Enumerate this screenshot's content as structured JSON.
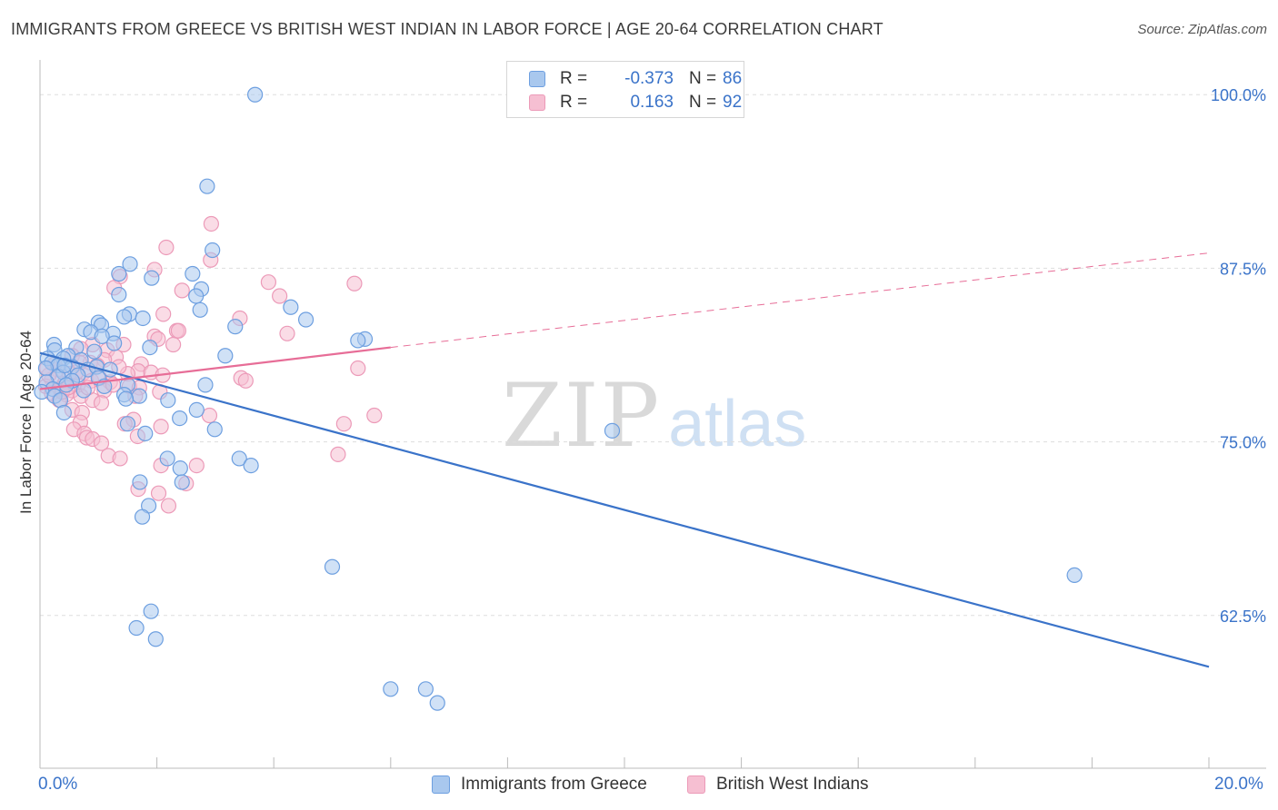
{
  "title": "IMMIGRANTS FROM GREECE VS BRITISH WEST INDIAN IN LABOR FORCE | AGE 20-64 CORRELATION CHART",
  "source": "Source: ZipAtlas.com",
  "watermark": {
    "zip": "ZIP",
    "atlas": "atlas"
  },
  "colors": {
    "blue": "#3a73c9",
    "blue_fill": "#a9c8ee",
    "blue_stroke": "#6d9fe0",
    "pink": "#e76d97",
    "pink_fill": "#f6bfd2",
    "pink_stroke": "#ec9ab8",
    "grid": "#dddddd",
    "axis_text": "#3a73c9"
  },
  "legend_top": {
    "rows": [
      {
        "r_label": "R =",
        "r_value": "-0.373",
        "n_label": "N =",
        "n_value": "86"
      },
      {
        "r_label": "R =",
        "r_value": "0.163",
        "n_label": "N =",
        "n_value": "92"
      }
    ]
  },
  "legend_bottom": [
    "Immigrants from Greece",
    "British West Indians"
  ],
  "chart_data": {
    "type": "scatter",
    "title": "IMMIGRANTS FROM GREECE VS BRITISH WEST INDIAN IN LABOR FORCE | AGE 20-64 CORRELATION CHART",
    "xlabel": "",
    "ylabel": "In Labor Force | Age 20-64",
    "xlim": [
      0,
      20
    ],
    "ylim": [
      51.5,
      102.5
    ],
    "x_tick_labels": [
      "0.0%",
      "20.0%"
    ],
    "y_ticks": [
      62.5,
      75.0,
      87.5,
      100.0
    ],
    "y_tick_labels": [
      "62.5%",
      "75.0%",
      "87.5%",
      "100.0%"
    ],
    "grid": true,
    "series": [
      {
        "name": "Immigrants from Greece",
        "color": "#3a73c9",
        "trendline": {
          "x": [
            0.0,
            20.0
          ],
          "y": [
            81.4,
            58.8
          ],
          "style": "solid"
        },
        "points": [
          [
            3.68,
            100.0
          ],
          [
            2.86,
            93.4
          ],
          [
            2.95,
            88.8
          ],
          [
            1.54,
            87.8
          ],
          [
            2.61,
            87.1
          ],
          [
            1.35,
            87.1
          ],
          [
            1.91,
            86.8
          ],
          [
            2.76,
            86.0
          ],
          [
            2.67,
            85.5
          ],
          [
            1.35,
            85.6
          ],
          [
            4.29,
            84.7
          ],
          [
            2.74,
            84.5
          ],
          [
            1.53,
            84.2
          ],
          [
            1.76,
            83.9
          ],
          [
            1.44,
            84.0
          ],
          [
            1.0,
            83.6
          ],
          [
            4.55,
            83.8
          ],
          [
            3.34,
            83.3
          ],
          [
            1.05,
            83.4
          ],
          [
            0.76,
            83.1
          ],
          [
            0.87,
            82.9
          ],
          [
            1.25,
            82.8
          ],
          [
            1.06,
            82.6
          ],
          [
            0.24,
            82.0
          ],
          [
            5.56,
            82.4
          ],
          [
            5.44,
            82.3
          ],
          [
            1.27,
            82.1
          ],
          [
            0.62,
            81.8
          ],
          [
            1.88,
            81.8
          ],
          [
            0.25,
            81.6
          ],
          [
            3.17,
            81.2
          ],
          [
            0.48,
            81.2
          ],
          [
            0.13,
            81.0
          ],
          [
            0.4,
            81.0
          ],
          [
            0.7,
            80.9
          ],
          [
            0.2,
            80.7
          ],
          [
            0.31,
            80.5
          ],
          [
            0.55,
            80.4
          ],
          [
            0.82,
            80.2
          ],
          [
            0.97,
            80.4
          ],
          [
            1.2,
            80.2
          ],
          [
            0.1,
            80.3
          ],
          [
            0.4,
            80.0
          ],
          [
            0.65,
            79.8
          ],
          [
            0.31,
            79.7
          ],
          [
            1.0,
            79.6
          ],
          [
            0.55,
            79.4
          ],
          [
            1.5,
            79.1
          ],
          [
            2.83,
            79.1
          ],
          [
            0.11,
            79.3
          ],
          [
            0.45,
            79.1
          ],
          [
            1.1,
            79.0
          ],
          [
            0.22,
            78.8
          ],
          [
            0.75,
            78.7
          ],
          [
            0.03,
            78.6
          ],
          [
            1.44,
            78.4
          ],
          [
            0.25,
            78.3
          ],
          [
            1.7,
            78.3
          ],
          [
            0.35,
            78.0
          ],
          [
            1.47,
            78.1
          ],
          [
            2.19,
            78.0
          ],
          [
            2.68,
            77.3
          ],
          [
            0.41,
            77.1
          ],
          [
            2.39,
            76.7
          ],
          [
            1.5,
            76.3
          ],
          [
            2.99,
            75.9
          ],
          [
            1.8,
            75.6
          ],
          [
            9.79,
            75.8
          ],
          [
            2.18,
            73.8
          ],
          [
            3.41,
            73.8
          ],
          [
            3.61,
            73.3
          ],
          [
            2.4,
            73.1
          ],
          [
            1.71,
            72.1
          ],
          [
            2.43,
            72.1
          ],
          [
            1.86,
            70.4
          ],
          [
            1.75,
            69.6
          ],
          [
            5.0,
            66.0
          ],
          [
            17.7,
            65.4
          ],
          [
            1.9,
            62.8
          ],
          [
            1.65,
            61.6
          ],
          [
            1.98,
            60.8
          ],
          [
            6.0,
            57.2
          ],
          [
            6.6,
            57.2
          ],
          [
            6.8,
            56.2
          ],
          [
            0.42,
            80.5
          ],
          [
            0.93,
            81.5
          ]
        ]
      },
      {
        "name": "British West Indians",
        "color": "#e76d97",
        "trendline_solid": {
          "x": [
            0.0,
            6.0
          ],
          "y": [
            78.8,
            81.8
          ],
          "style": "solid"
        },
        "trendline_dashed": {
          "x": [
            6.0,
            20.0
          ],
          "y": [
            81.8,
            88.6
          ],
          "style": "dashed"
        },
        "points": [
          [
            2.93,
            90.7
          ],
          [
            2.16,
            89.0
          ],
          [
            2.92,
            88.1
          ],
          [
            1.96,
            87.4
          ],
          [
            1.37,
            86.9
          ],
          [
            3.91,
            86.5
          ],
          [
            5.38,
            86.4
          ],
          [
            1.27,
            86.1
          ],
          [
            2.43,
            85.9
          ],
          [
            4.1,
            85.5
          ],
          [
            2.11,
            84.2
          ],
          [
            3.42,
            83.9
          ],
          [
            2.34,
            83.0
          ],
          [
            2.37,
            83.0
          ],
          [
            4.23,
            82.8
          ],
          [
            1.96,
            82.6
          ],
          [
            2.02,
            82.4
          ],
          [
            2.28,
            82.0
          ],
          [
            1.43,
            82.0
          ],
          [
            0.9,
            82.0
          ],
          [
            1.15,
            81.6
          ],
          [
            0.7,
            81.7
          ],
          [
            1.3,
            81.1
          ],
          [
            0.55,
            81.2
          ],
          [
            1.1,
            80.9
          ],
          [
            0.86,
            80.7
          ],
          [
            1.73,
            80.6
          ],
          [
            0.98,
            80.5
          ],
          [
            5.44,
            80.3
          ],
          [
            0.3,
            80.2
          ],
          [
            1.68,
            80.1
          ],
          [
            0.75,
            80.0
          ],
          [
            1.5,
            79.9
          ],
          [
            0.5,
            79.9
          ],
          [
            3.44,
            79.6
          ],
          [
            3.52,
            79.4
          ],
          [
            0.2,
            79.5
          ],
          [
            0.88,
            79.4
          ],
          [
            1.2,
            79.3
          ],
          [
            0.42,
            79.2
          ],
          [
            0.65,
            79.1
          ],
          [
            1.53,
            79.0
          ],
          [
            0.1,
            79.0
          ],
          [
            1.7,
            78.9
          ],
          [
            0.34,
            78.8
          ],
          [
            0.55,
            78.7
          ],
          [
            1.1,
            78.7
          ],
          [
            2.05,
            78.6
          ],
          [
            0.2,
            78.5
          ],
          [
            0.45,
            78.4
          ],
          [
            1.63,
            78.3
          ],
          [
            0.7,
            78.3
          ],
          [
            0.9,
            78.0
          ],
          [
            0.33,
            78.0
          ],
          [
            1.05,
            77.8
          ],
          [
            0.55,
            77.3
          ],
          [
            0.72,
            77.1
          ],
          [
            2.9,
            76.9
          ],
          [
            5.72,
            76.9
          ],
          [
            1.6,
            76.6
          ],
          [
            0.69,
            76.4
          ],
          [
            5.2,
            76.3
          ],
          [
            1.45,
            76.3
          ],
          [
            2.07,
            76.1
          ],
          [
            0.58,
            75.9
          ],
          [
            0.76,
            75.6
          ],
          [
            1.67,
            75.4
          ],
          [
            0.8,
            75.3
          ],
          [
            0.9,
            75.2
          ],
          [
            1.05,
            74.9
          ],
          [
            5.1,
            74.1
          ],
          [
            1.17,
            74.0
          ],
          [
            1.37,
            73.8
          ],
          [
            2.07,
            73.3
          ],
          [
            2.68,
            73.3
          ],
          [
            2.5,
            72.0
          ],
          [
            1.68,
            71.6
          ],
          [
            2.03,
            71.3
          ],
          [
            2.2,
            70.4
          ],
          [
            0.25,
            80.6
          ],
          [
            0.62,
            80.0
          ],
          [
            1.35,
            80.4
          ],
          [
            0.15,
            79.8
          ],
          [
            0.82,
            78.9
          ],
          [
            1.9,
            80.0
          ],
          [
            0.38,
            78.6
          ],
          [
            1.02,
            79.6
          ],
          [
            0.48,
            78.9
          ],
          [
            1.25,
            79.1
          ],
          [
            2.1,
            79.8
          ],
          [
            0.12,
            80.3
          ],
          [
            0.68,
            80.7
          ]
        ]
      }
    ]
  }
}
